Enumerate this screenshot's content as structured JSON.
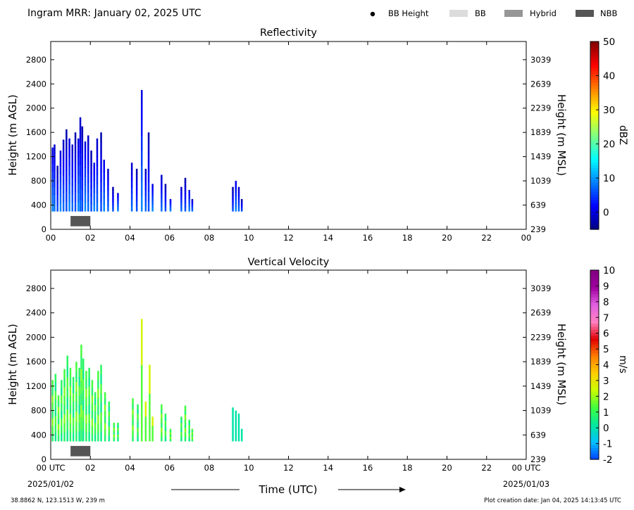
{
  "header": {
    "title": "Ingram MRR:  January 02, 2025 UTC",
    "legend": [
      {
        "label": "BB Height",
        "kind": "dot",
        "color": "#000000"
      },
      {
        "label": "BB",
        "kind": "swatch",
        "color": "#dcdcdc"
      },
      {
        "label": "Hybrid",
        "kind": "swatch",
        "color": "#969696"
      },
      {
        "label": "NBB",
        "kind": "swatch",
        "color": "#555555"
      }
    ]
  },
  "footer": {
    "location": "38.8862 N, 123.1513 W, 239 m",
    "creation": "Plot creation date: Jan 04, 2025 14:13:45 UTC",
    "xlabel": "Time (UTC)",
    "start_date": "2025/01/02",
    "end_date": "2025/01/03"
  },
  "chart_data": [
    {
      "type": "heatmap",
      "title": "Reflectivity",
      "ylabel": "Height (m AGL)",
      "ylabel_right": "Height (m MSL)",
      "colorbar_label": "dBZ",
      "colorbar_range": [
        -5,
        50
      ],
      "colorbar_ticks": [
        "0",
        "10",
        "20",
        "30",
        "40",
        "50"
      ],
      "colorbar_tick_values": [
        0,
        10,
        20,
        30,
        40,
        50
      ],
      "colormap": [
        "#000080",
        "#0000ff",
        "#0080ff",
        "#00ffff",
        "#80ff80",
        "#ffff00",
        "#ff8000",
        "#ff0000",
        "#800000"
      ],
      "xlim": [
        0,
        24
      ],
      "ylim": [
        0,
        3100
      ],
      "x_ticks": [
        "00",
        "02",
        "04",
        "06",
        "08",
        "10",
        "12",
        "14",
        "16",
        "18",
        "20",
        "22",
        "00"
      ],
      "y_ticks_left": [
        "0",
        "400",
        "800",
        "1200",
        "1600",
        "2000",
        "2400",
        "2800"
      ],
      "y_ticks_right": [
        "239",
        "639",
        "1039",
        "1439",
        "1839",
        "2239",
        "2639",
        "3039"
      ],
      "precip_columns": [
        [
          0.05,
          1350
        ],
        [
          0.15,
          1400
        ],
        [
          0.3,
          1050
        ],
        [
          0.45,
          1300
        ],
        [
          0.6,
          1480
        ],
        [
          0.75,
          1650
        ],
        [
          0.9,
          1500
        ],
        [
          1.05,
          1400
        ],
        [
          1.2,
          1600
        ],
        [
          1.35,
          1500
        ],
        [
          1.45,
          1850
        ],
        [
          1.55,
          1700
        ],
        [
          1.7,
          1450
        ],
        [
          1.85,
          1550
        ],
        [
          2.0,
          1300
        ],
        [
          2.15,
          1100
        ],
        [
          2.3,
          1500
        ],
        [
          2.5,
          1600
        ],
        [
          2.65,
          1150
        ],
        [
          2.85,
          1000
        ],
        [
          3.1,
          700
        ],
        [
          3.35,
          600
        ],
        [
          4.05,
          1100
        ],
        [
          4.3,
          1000
        ],
        [
          4.55,
          2300
        ],
        [
          4.75,
          1000
        ],
        [
          4.9,
          1600
        ],
        [
          5.1,
          750
        ],
        [
          5.55,
          900
        ],
        [
          5.75,
          750
        ],
        [
          6.0,
          500
        ],
        [
          6.55,
          700
        ],
        [
          6.75,
          850
        ],
        [
          6.95,
          650
        ],
        [
          7.1,
          500
        ],
        [
          9.15,
          700
        ],
        [
          9.3,
          800
        ],
        [
          9.45,
          700
        ],
        [
          9.6,
          500
        ]
      ],
      "bright_band": {
        "start_hour": 1.0,
        "end_hour": 2.0,
        "height_range": [
          50,
          220
        ],
        "class": "NBB"
      }
    },
    {
      "type": "heatmap",
      "title": "Vertical Velocity",
      "ylabel": "Height (m AGL)",
      "ylabel_right": "Height (m MSL)",
      "colorbar_label": "m/s",
      "colorbar_range": [
        -2,
        10
      ],
      "colorbar_ticks": [
        "-2",
        "-1",
        "0",
        "1",
        "2",
        "3",
        "4",
        "5",
        "6",
        "7",
        "8",
        "9",
        "10"
      ],
      "colorbar_tick_values": [
        -2,
        -1,
        0,
        1,
        2,
        3,
        4,
        5,
        6,
        7,
        8,
        9,
        10
      ],
      "colormap": [
        "#0040ff",
        "#00c0ff",
        "#00e8a0",
        "#40ff40",
        "#c8ff00",
        "#ffd000",
        "#ff8000",
        "#e00000",
        "#ff80c0",
        "#e060e0",
        "#a000a0",
        "#800080"
      ],
      "xlim": [
        0,
        24
      ],
      "ylim": [
        0,
        3100
      ],
      "x_ticks": [
        "00 UTC",
        "02",
        "04",
        "06",
        "08",
        "10",
        "12",
        "14",
        "16",
        "18",
        "20",
        "22",
        "00 UTC"
      ],
      "y_ticks_left": [
        "0",
        "400",
        "800",
        "1200",
        "1600",
        "2000",
        "2400",
        "2800"
      ],
      "y_ticks_right": [
        "239",
        "639",
        "1039",
        "1439",
        "1839",
        "2239",
        "2639",
        "3039"
      ],
      "precip_columns": [
        [
          0.05,
          1300
        ],
        [
          0.2,
          1400
        ],
        [
          0.35,
          1050
        ],
        [
          0.5,
          1300
        ],
        [
          0.65,
          1480
        ],
        [
          0.8,
          1700
        ],
        [
          0.95,
          1500
        ],
        [
          1.1,
          1350
        ],
        [
          1.25,
          1600
        ],
        [
          1.4,
          1500
        ],
        [
          1.5,
          1880
        ],
        [
          1.6,
          1650
        ],
        [
          1.75,
          1450
        ],
        [
          1.9,
          1500
        ],
        [
          2.05,
          1300
        ],
        [
          2.2,
          1100
        ],
        [
          2.35,
          1450
        ],
        [
          2.5,
          1550
        ],
        [
          2.7,
          1100
        ],
        [
          2.9,
          950
        ],
        [
          3.15,
          600
        ],
        [
          3.35,
          600
        ],
        [
          4.1,
          1000
        ],
        [
          4.35,
          900
        ],
        [
          4.55,
          2300
        ],
        [
          4.75,
          950
        ],
        [
          4.95,
          1550
        ],
        [
          5.1,
          700
        ],
        [
          5.55,
          900
        ],
        [
          5.75,
          750
        ],
        [
          6.0,
          500
        ],
        [
          6.55,
          700
        ],
        [
          6.75,
          880
        ],
        [
          6.95,
          650
        ],
        [
          7.1,
          500
        ],
        [
          9.15,
          850
        ],
        [
          9.3,
          800
        ],
        [
          9.45,
          750
        ],
        [
          9.6,
          500
        ]
      ],
      "bright_band": {
        "start_hour": 1.0,
        "end_hour": 2.0,
        "height_range": [
          50,
          220
        ],
        "class": "NBB"
      }
    }
  ]
}
